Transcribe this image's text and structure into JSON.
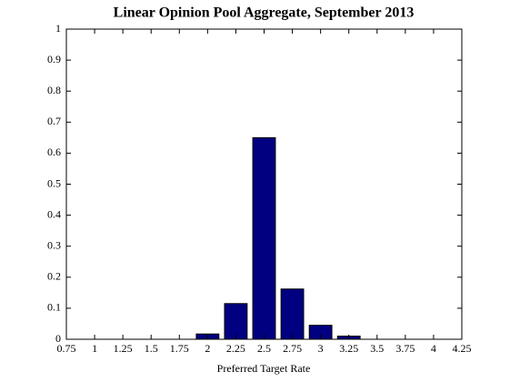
{
  "chart_data": {
    "type": "bar",
    "title": "Linear Opinion Pool Aggregate, September 2013",
    "x_label": "Preferred Target Rate",
    "x": [
      2,
      2.25,
      2.5,
      2.75,
      3,
      3.25
    ],
    "values": [
      0.017,
      0.115,
      0.65,
      0.162,
      0.045,
      0.01
    ],
    "color": "#000080",
    "bar_width": 0.2,
    "xlim": [
      0.75,
      4.25
    ],
    "xticks": [
      0.75,
      1,
      1.25,
      1.5,
      1.75,
      2,
      2.25,
      2.5,
      2.75,
      3,
      3.25,
      3.5,
      3.75,
      4,
      4.25
    ],
    "ylim": [
      0,
      1
    ],
    "yticks": [
      0,
      0.1,
      0.2,
      0.3,
      0.4,
      0.5,
      0.6,
      0.7,
      0.8,
      0.9,
      1
    ]
  }
}
